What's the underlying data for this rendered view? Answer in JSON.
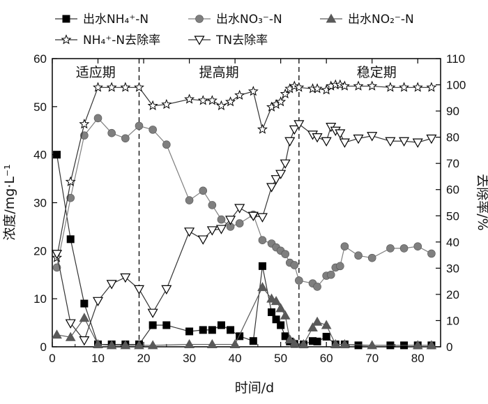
{
  "chart_data": {
    "type": "line",
    "xlabel": "时间/d",
    "ylabel_left": "浓度/mg·L⁻¹",
    "ylabel_right": "去除率/%",
    "xlim": [
      0,
      85
    ],
    "ylim_left": [
      0,
      60
    ],
    "ylim_right": [
      0,
      110
    ],
    "x_ticks": [
      0,
      10,
      20,
      30,
      40,
      50,
      60,
      70,
      80
    ],
    "y_left_ticks": [
      0,
      10,
      20,
      30,
      40,
      50,
      60
    ],
    "y_right_ticks": [
      0,
      10,
      20,
      30,
      40,
      50,
      60,
      70,
      80,
      90,
      100,
      110
    ],
    "phase_dividers": [
      19,
      54
    ],
    "phases": [
      {
        "label": "适应期",
        "x": 9.5
      },
      {
        "label": "提高期",
        "x": 36.5
      },
      {
        "label": "稳定期",
        "x": 71
      }
    ],
    "legend": [
      {
        "label": "出水NH₄⁺-N",
        "series": 0
      },
      {
        "label": "出水NO₃⁻-N",
        "series": 1
      },
      {
        "label": "出水NO₂⁻-N",
        "series": 2
      },
      {
        "label": "NH₄⁺-N去除率",
        "series": 3
      },
      {
        "label": "TN去除率",
        "series": 4
      }
    ],
    "series": [
      {
        "name": "出水NH₄⁺-N",
        "axis": "left",
        "marker": "square",
        "color": "#000000",
        "points": [
          [
            1,
            40
          ],
          [
            4,
            22.4
          ],
          [
            7,
            9
          ],
          [
            10,
            0.5
          ],
          [
            13,
            0.5
          ],
          [
            16,
            0.5
          ],
          [
            19,
            0.5
          ],
          [
            22,
            4.5
          ],
          [
            25,
            4.5
          ],
          [
            30,
            3.2
          ],
          [
            33,
            3.5
          ],
          [
            35,
            3.5
          ],
          [
            37,
            4.5
          ],
          [
            39,
            3.5
          ],
          [
            41,
            2.2
          ],
          [
            44,
            1.2
          ],
          [
            46,
            16.8
          ],
          [
            48,
            7.2
          ],
          [
            49,
            5.7
          ],
          [
            50,
            4.5
          ],
          [
            51,
            2.2
          ],
          [
            52,
            1.1
          ],
          [
            53,
            0.6
          ],
          [
            55,
            0.5
          ],
          [
            57,
            1.2
          ],
          [
            58,
            1.1
          ],
          [
            60,
            2.1
          ],
          [
            62,
            0.5
          ],
          [
            64,
            0.5
          ],
          [
            67,
            0.3
          ],
          [
            74,
            0.3
          ],
          [
            77,
            0.3
          ],
          [
            80,
            0.3
          ],
          [
            83,
            0.3
          ]
        ]
      },
      {
        "name": "出水NO₃⁻-N",
        "axis": "left",
        "marker": "circle",
        "color": "#7f7f7f",
        "points": [
          [
            1,
            16.5
          ],
          [
            4,
            31
          ],
          [
            7,
            44
          ],
          [
            10,
            47.6
          ],
          [
            13,
            44.5
          ],
          [
            16,
            43.4
          ],
          [
            19,
            46
          ],
          [
            22,
            45.2
          ],
          [
            25,
            42.1
          ],
          [
            30,
            30.5
          ],
          [
            33,
            32.5
          ],
          [
            35,
            29.5
          ],
          [
            37,
            26.5
          ],
          [
            39,
            25
          ],
          [
            41,
            25.7
          ],
          [
            44,
            27.5
          ],
          [
            46,
            22.2
          ],
          [
            48,
            21.5
          ],
          [
            49,
            20.7
          ],
          [
            50,
            20
          ],
          [
            51,
            19.3
          ],
          [
            52,
            17.5
          ],
          [
            53,
            17
          ],
          [
            54,
            13.8
          ],
          [
            57,
            13.2
          ],
          [
            58,
            12.5
          ],
          [
            60,
            14.8
          ],
          [
            61,
            15
          ],
          [
            62,
            16.5
          ],
          [
            63,
            16.8
          ],
          [
            64,
            20.9
          ],
          [
            67,
            19
          ],
          [
            70,
            18.5
          ],
          [
            74,
            20.5
          ],
          [
            77,
            20.5
          ],
          [
            80,
            20.9
          ],
          [
            83,
            19.4
          ]
        ]
      },
      {
        "name": "出水NO₂⁻-N",
        "axis": "left",
        "marker": "triangle-up",
        "color": "#595959",
        "points": [
          [
            1,
            2.5
          ],
          [
            4,
            2
          ],
          [
            7,
            6
          ],
          [
            10,
            0.5
          ],
          [
            13,
            0.3
          ],
          [
            16,
            0.3
          ],
          [
            19,
            0.3
          ],
          [
            22,
            0.3
          ],
          [
            30,
            0.5
          ],
          [
            35,
            0.5
          ],
          [
            40,
            0.5
          ],
          [
            46,
            12.4
          ],
          [
            48,
            10
          ],
          [
            49,
            9.5
          ],
          [
            50,
            8
          ],
          [
            51,
            6.5
          ],
          [
            52,
            1.5
          ],
          [
            53,
            0.7
          ],
          [
            55,
            0.5
          ],
          [
            57,
            4
          ],
          [
            58,
            5.2
          ],
          [
            60,
            4.5
          ],
          [
            62,
            0.5
          ],
          [
            64,
            0.5
          ],
          [
            70,
            0.3
          ],
          [
            80,
            0.3
          ],
          [
            83,
            0.3
          ]
        ]
      },
      {
        "name": "NH₄⁺-N去除率",
        "axis": "right",
        "marker": "star",
        "color": "#000000",
        "points": [
          [
            1,
            34
          ],
          [
            4,
            63
          ],
          [
            7,
            85
          ],
          [
            10,
            99
          ],
          [
            13,
            99
          ],
          [
            16,
            99
          ],
          [
            19,
            99
          ],
          [
            22,
            92
          ],
          [
            25,
            92.5
          ],
          [
            30,
            94.5
          ],
          [
            33,
            94
          ],
          [
            35,
            94
          ],
          [
            37,
            92
          ],
          [
            39,
            93.5
          ],
          [
            41,
            96
          ],
          [
            44,
            97.5
          ],
          [
            46,
            83
          ],
          [
            48,
            91.5
          ],
          [
            49,
            92.5
          ],
          [
            50,
            93.5
          ],
          [
            51,
            96.5
          ],
          [
            52,
            98.5
          ],
          [
            53,
            99.5
          ],
          [
            54,
            99
          ],
          [
            57,
            98.5
          ],
          [
            58,
            98.5
          ],
          [
            60,
            98
          ],
          [
            61,
            99.5
          ],
          [
            62,
            100
          ],
          [
            63,
            100
          ],
          [
            64,
            99.5
          ],
          [
            67,
            99.5
          ],
          [
            70,
            99.5
          ],
          [
            74,
            99
          ],
          [
            77,
            99
          ],
          [
            80,
            99
          ],
          [
            83,
            99
          ]
        ]
      },
      {
        "name": "TN去除率",
        "axis": "right",
        "marker": "triangle-down",
        "color": "#000000",
        "points": [
          [
            1,
            35.5
          ],
          [
            4,
            9
          ],
          [
            7,
            2.5
          ],
          [
            10,
            17.5
          ],
          [
            13,
            24
          ],
          [
            16,
            26.5
          ],
          [
            19,
            22
          ],
          [
            22,
            13
          ],
          [
            25,
            22
          ],
          [
            30,
            44
          ],
          [
            33,
            41
          ],
          [
            35,
            44.5
          ],
          [
            37,
            45
          ],
          [
            39,
            48.5
          ],
          [
            41,
            53
          ],
          [
            44,
            50
          ],
          [
            46,
            49.5
          ],
          [
            48,
            61
          ],
          [
            49,
            64
          ],
          [
            50,
            66
          ],
          [
            51,
            70
          ],
          [
            52,
            78.5
          ],
          [
            53,
            83
          ],
          [
            54,
            85
          ],
          [
            57,
            81
          ],
          [
            58,
            80
          ],
          [
            60,
            78.5
          ],
          [
            61,
            84
          ],
          [
            62,
            82.5
          ],
          [
            63,
            81.5
          ],
          [
            64,
            78
          ],
          [
            67,
            79.5
          ],
          [
            70,
            80.5
          ],
          [
            74,
            78.5
          ],
          [
            77,
            78.5
          ],
          [
            80,
            78
          ],
          [
            83,
            79.5
          ]
        ]
      }
    ]
  }
}
